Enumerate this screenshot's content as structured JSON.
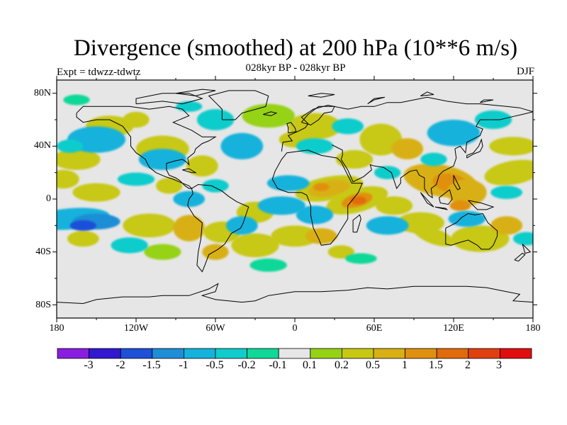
{
  "header": {
    "title": "Divergence (smoothed) at 200 hPa (10**6 m/s)",
    "subtitle": "028kyr BP - 028kyr BP",
    "expt": "Expt = tdwzz-tdwtz",
    "season": "DJF"
  },
  "map": {
    "lat_labels": [
      "80N",
      "40N",
      "0",
      "40S",
      "80S"
    ],
    "lon_labels": [
      "180",
      "120W",
      "60W",
      "0",
      "60E",
      "120E",
      "180"
    ],
    "background_color": "#e6e6e6",
    "coastline_color": "#000000"
  },
  "colorbar": {
    "colors": [
      "#8a1ee0",
      "#3218d0",
      "#1e50d8",
      "#1e8ed6",
      "#14b2dc",
      "#10cccc",
      "#10d898",
      "#e6e6e6",
      "#96d214",
      "#c8c814",
      "#d8b014",
      "#e09010",
      "#e06a0c",
      "#e04010",
      "#e00e0e"
    ],
    "labels": [
      "-3",
      "-2",
      "-1.5",
      "-1",
      "-0.5",
      "-0.2",
      "-0.1",
      "0.1",
      "0.2",
      "0.5",
      "1",
      "1.5",
      "2",
      "3"
    ]
  }
}
